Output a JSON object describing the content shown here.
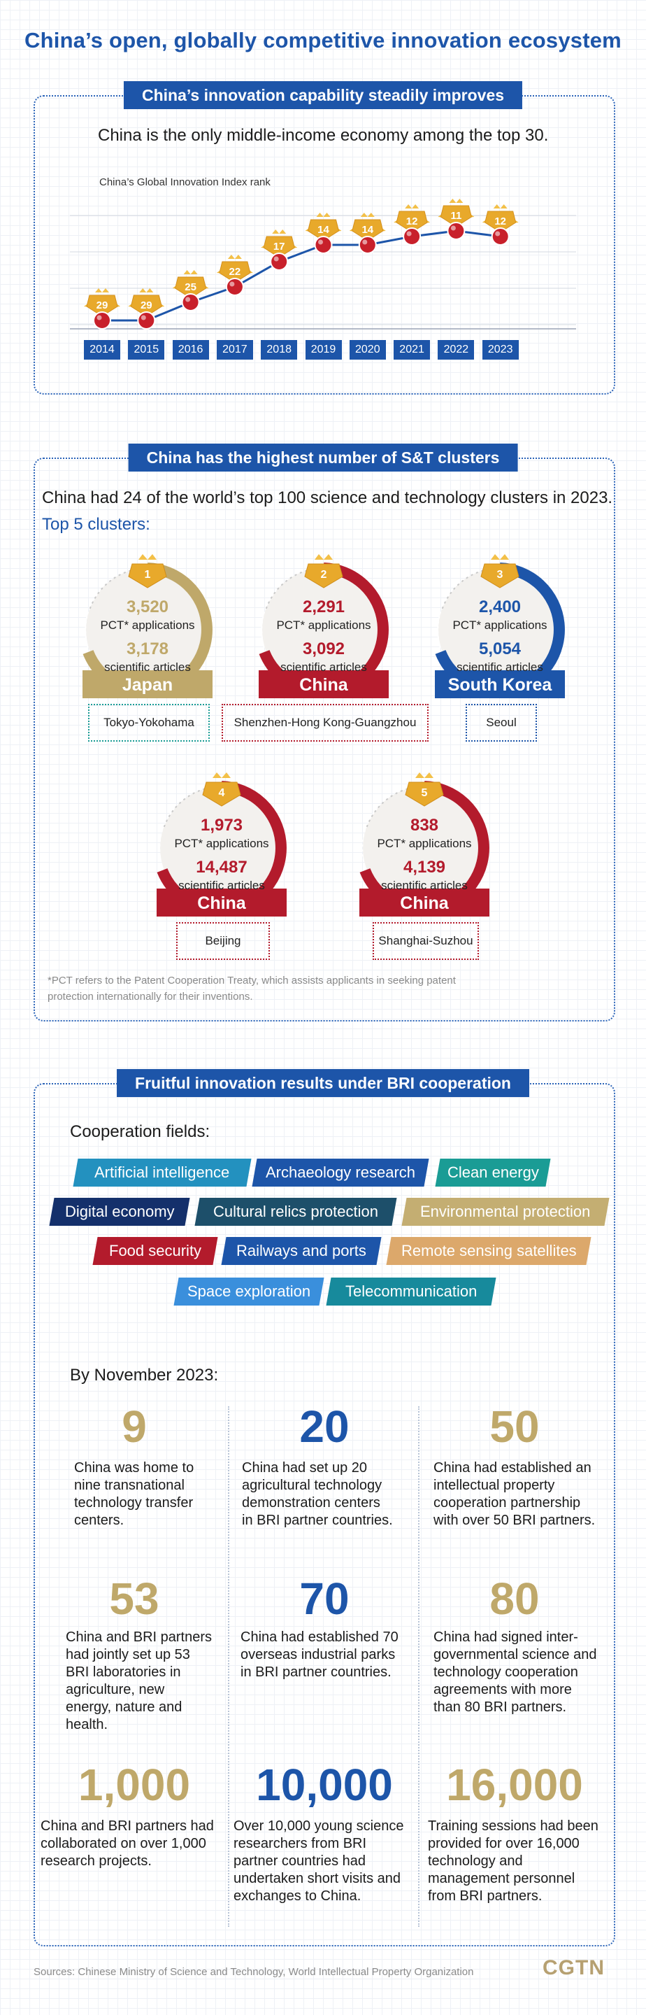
{
  "title": "China’s open, globally competitive innovation ecosystem",
  "section1": {
    "banner": "China’s innovation capability steadily improves",
    "subtitle": "China is the only middle-income economy among the top 30.",
    "chart_title": "China’s Global Innovation Index rank",
    "chart_data": {
      "type": "line",
      "title": "China’s Global Innovation Index rank",
      "x": [
        "2014",
        "2015",
        "2016",
        "2017",
        "2018",
        "2019",
        "2020",
        "2021",
        "2022",
        "2023"
      ],
      "series": [
        {
          "values": [
            29,
            29,
            25,
            22,
            17,
            14,
            14,
            12,
            11,
            12
          ]
        }
      ],
      "ylim": [
        30,
        10
      ],
      "grid": true,
      "colors": {
        "line": "#1d55a9",
        "marker": "#c8202b",
        "medal": "#e8a92b"
      }
    }
  },
  "section2": {
    "banner": "China has the highest number of S&T clusters",
    "subtitle": "China had 24 of the world’s top 100 science and technology clusters in 2023.",
    "top_label": "Top 5 clusters:",
    "pct_label": "PCT* applications",
    "articles_label": "scientific articles",
    "clusters": [
      {
        "rank": "1",
        "pct": "3,520",
        "articles": "3,178",
        "country": "Japan",
        "city": "Tokyo-Yokohama",
        "color": "#bfa86a"
      },
      {
        "rank": "2",
        "pct": "2,291",
        "articles": "3,092",
        "country": "China",
        "city": "Shenzhen-Hong Kong-Guangzhou",
        "color": "#b31b2c"
      },
      {
        "rank": "3",
        "pct": "2,400",
        "articles": "5,054",
        "country": "South Korea",
        "city": "Seoul",
        "color": "#1d55a9"
      },
      {
        "rank": "4",
        "pct": "1,973",
        "articles": "14,487",
        "country": "China",
        "city": "Beijing",
        "color": "#b31b2c"
      },
      {
        "rank": "5",
        "pct": "838",
        "articles": "4,139",
        "country": "China",
        "city": "Shanghai-Suzhou",
        "color": "#b31b2c"
      }
    ],
    "footnote_line1": "*PCT refers to the Patent Cooperation Treaty, which assists applicants in seeking patent",
    "footnote_line2": "protection internationally for their inventions."
  },
  "section3": {
    "banner": "Fruitful innovation results under BRI cooperation",
    "fields_label": "Cooperation fields:",
    "tags": [
      {
        "label": "Artificial intelligence",
        "color": "#2391bf"
      },
      {
        "label": "Archaeology research",
        "color": "#1d55a9"
      },
      {
        "label": "Clean energy",
        "color": "#1a9c95"
      },
      {
        "label": "Digital economy",
        "color": "#14306b"
      },
      {
        "label": "Cultural relics protection",
        "color": "#1d4f6a"
      },
      {
        "label": "Environmental protection",
        "color": "#c4ae72"
      },
      {
        "label": "Food security",
        "color": "#b31b2c"
      },
      {
        "label": "Railways and ports",
        "color": "#1d55a9"
      },
      {
        "label": "Remote sensing satellites",
        "color": "#dca86b"
      },
      {
        "label": "Space exploration",
        "color": "#3a8fdc"
      },
      {
        "label": "Telecommunication",
        "color": "#178a9c"
      }
    ],
    "by_date": "By November 2023:",
    "stats": [
      {
        "num": "9",
        "color": "#bfa86a",
        "text": [
          "China was home to",
          "nine transnational",
          "technology transfer",
          "centers."
        ]
      },
      {
        "num": "20",
        "color": "#1d55a9",
        "text": [
          "China had set up 20",
          "agricultural technology",
          "demonstration centers",
          "in BRI partner countries."
        ]
      },
      {
        "num": "50",
        "color": "#bfa86a",
        "text": [
          "China had established an",
          "intellectual property",
          "cooperation partnership",
          "with over 50 BRI partners."
        ]
      },
      {
        "num": "53",
        "color": "#bfa86a",
        "text": [
          "China and BRI partners",
          "had jointly set up 53",
          "BRI laboratories in",
          "agriculture, new",
          "energy, nature and",
          "health."
        ]
      },
      {
        "num": "70",
        "color": "#1d55a9",
        "text": [
          "China had established 70",
          "overseas industrial parks",
          "in BRI partner countries."
        ]
      },
      {
        "num": "80",
        "color": "#bfa86a",
        "text": [
          "China had signed inter-",
          "governmental science and",
          "technology cooperation",
          "agreements with more",
          "than 80 BRI partners."
        ]
      },
      {
        "num": "1,000",
        "color": "#bfa86a",
        "text": [
          "China and BRI partners had",
          "collaborated on over 1,000",
          "research projects."
        ]
      },
      {
        "num": "10,000",
        "color": "#1d55a9",
        "text": [
          "Over 10,000 young science",
          "researchers from BRI",
          "partner countries had",
          "undertaken short visits and",
          "exchanges to China."
        ]
      },
      {
        "num": "16,000",
        "color": "#bfa86a",
        "text": [
          "Training sessions had been",
          "provided for over 16,000",
          "technology and",
          "management personnel",
          "from BRI partners."
        ]
      }
    ]
  },
  "footer": {
    "sources": "Sources: Chinese Ministry of Science and Technology, World Intellectual Property Organization",
    "logo": "CGTN"
  }
}
